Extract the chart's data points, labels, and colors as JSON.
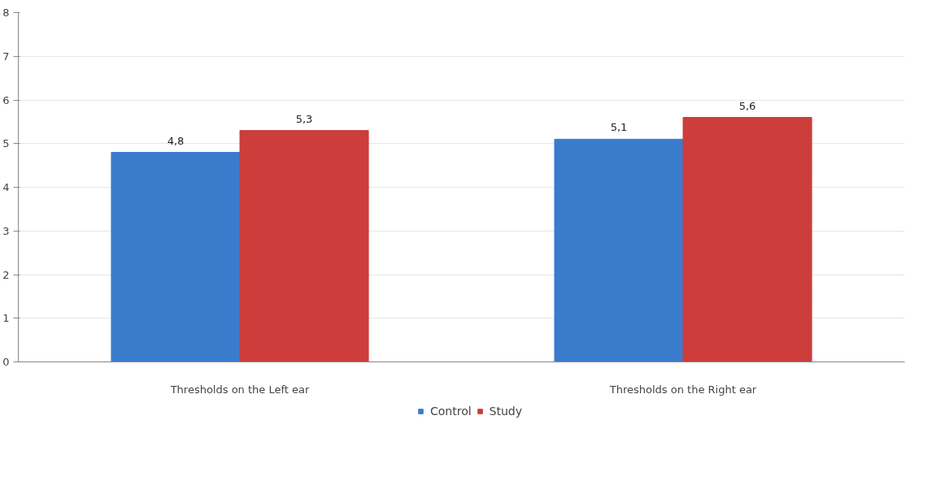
{
  "chart_data": {
    "type": "bar",
    "categories": [
      "Thresholds on the Left ear",
      "Thresholds on the Right ear"
    ],
    "series": [
      {
        "name": "Control",
        "color": "#3b7bcc",
        "values": [
          4.8,
          5.1
        ],
        "value_labels": [
          "4,8",
          "5,1"
        ]
      },
      {
        "name": "Study",
        "color": "#cc3d3b",
        "values": [
          5.3,
          5.6
        ],
        "value_labels": [
          "5,3",
          "5,6"
        ]
      }
    ],
    "ylim": [
      0,
      8
    ],
    "yticks": [
      0,
      1,
      2,
      3,
      4,
      5,
      6,
      7,
      8
    ],
    "grid": "y",
    "legend": "bottom"
  }
}
